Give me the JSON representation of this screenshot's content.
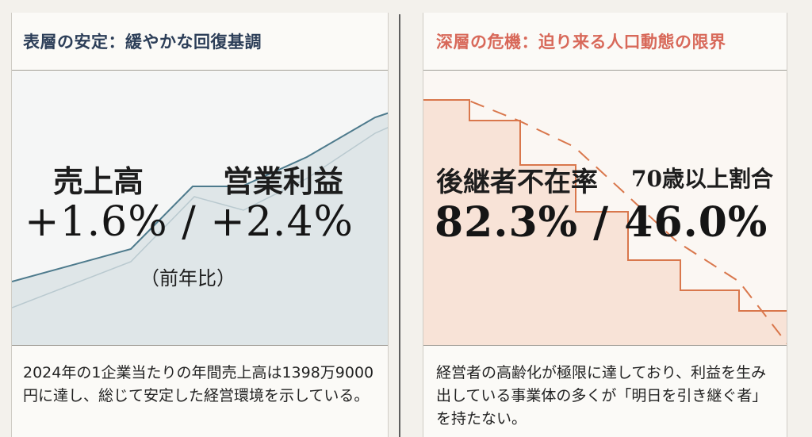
{
  "left_panel": {
    "title": "表層の安定：緩やかな回復基調",
    "label_sales": "売上高",
    "label_profit": "営業利益",
    "value": "+1.6% / +2.4%",
    "note": "（前年比）",
    "body": "2024年の1企業当たりの年間売上高は1398万9000円に達し、総じて安定した経営環境を示している。",
    "trend_chart": {
      "type": "area",
      "direction": "upward",
      "line_color": "#4d7a8c",
      "fill_color": "#dfe6e8"
    }
  },
  "right_panel": {
    "title": "深層の危機：迫り来る人口動態の限界",
    "label_successor": "後継者不在率",
    "label_age": "70歳以上割合",
    "value": "82.3% / 46.0%",
    "body": "経営者の高齢化が極限に達しており、利益を生み出している事業体の多くが「明日を引き継ぐ者」を持たない。",
    "decline_chart": {
      "type": "step",
      "direction": "downward",
      "line_color": "#d9774c",
      "fill_color": "#f8e3d7",
      "dashed_trend": true
    }
  }
}
